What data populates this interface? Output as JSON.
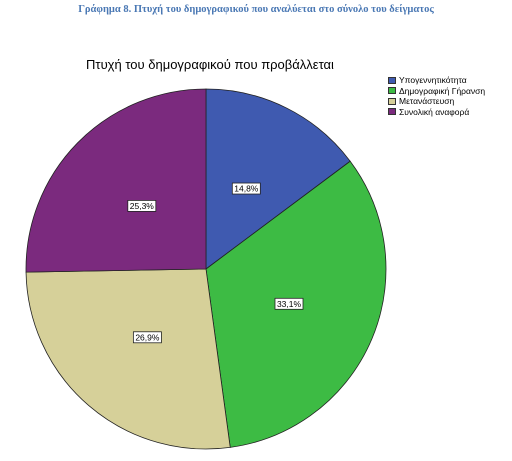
{
  "caption": "Γράφημα 8. Πτυχή του δημογραφικού που αναλύεται στο σύνολο του δείγματος",
  "chart_data": {
    "type": "pie",
    "title": "Πτυχή του δημογραφικού που προβάλλεται",
    "legend_position": "top-right",
    "series": [
      {
        "name": "Υπογεννητικότητα",
        "value": 14.8,
        "label": "14,8%",
        "color": "#3f5ab0"
      },
      {
        "name": "Δημογραφική Γήρανση",
        "value": 33.1,
        "label": "33,1%",
        "color": "#3dbb44"
      },
      {
        "name": "Μετανάστευση",
        "value": 26.9,
        "label": "26,9%",
        "color": "#d6d099"
      },
      {
        "name": "Συνολική αναφορά",
        "value": 25.3,
        "label": "25,3%",
        "color": "#7b2a7e"
      }
    ]
  }
}
